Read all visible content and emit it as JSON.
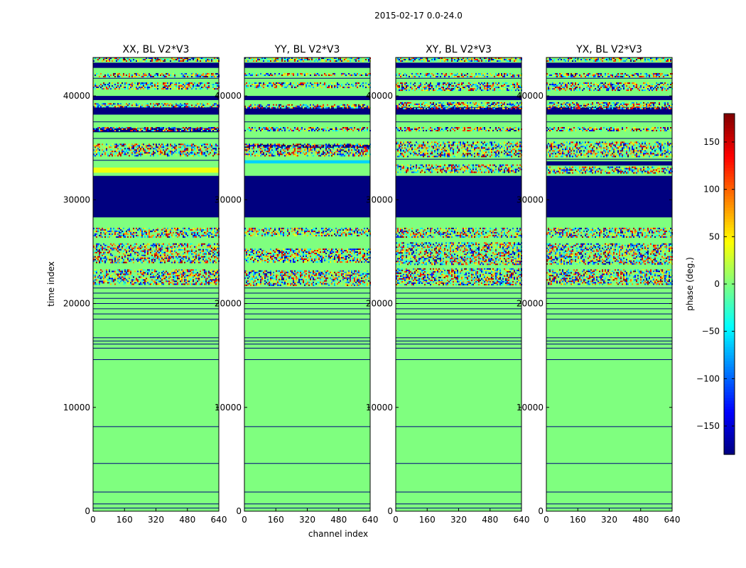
{
  "chart_data": {
    "type": "heatmap",
    "title": "2015-02-17 0.0-24.0",
    "xlabel": "channel index",
    "ylabel": "time index",
    "xlim": [
      0,
      640
    ],
    "ylim": [
      0,
      43700
    ],
    "xticks": [
      0,
      160,
      320,
      480,
      640
    ],
    "yticks": [
      0,
      10000,
      20000,
      30000,
      40000
    ],
    "colorbar": {
      "label": "phase (deg.)",
      "range": [
        -180,
        180
      ],
      "ticks": [
        -150,
        -100,
        -50,
        0,
        50,
        100,
        150
      ],
      "colormap": "jet",
      "colors": [
        "#00007f",
        "#0000ff",
        "#007fff",
        "#00ffff",
        "#7fff7f",
        "#ffff00",
        "#ff7f00",
        "#ff0000",
        "#7f0000"
      ]
    },
    "panels": [
      {
        "name": "XX, BL V2*V3",
        "bands": [
          {
            "from": 28300,
            "to": 32300,
            "phase": -180
          },
          {
            "from": 38200,
            "to": 38900,
            "phase": -180
          },
          {
            "from": 39600,
            "to": 40000,
            "phase": -180
          },
          {
            "from": 42700,
            "to": 43200,
            "phase": -180
          },
          {
            "from": 32600,
            "to": 33100,
            "phase": 40
          },
          {
            "from": 36500,
            "to": 36900,
            "phase": -180
          }
        ],
        "noise": [
          {
            "from": 21800,
            "to": 23300
          },
          {
            "from": 23900,
            "to": 25800
          },
          {
            "from": 26400,
            "to": 27300
          },
          {
            "from": 34300,
            "to": 35400
          },
          {
            "from": 36600,
            "to": 37000
          },
          {
            "from": 38900,
            "to": 39300
          },
          {
            "from": 40700,
            "to": 41300
          },
          {
            "from": 41900,
            "to": 42200
          },
          {
            "from": 43300,
            "to": 43700
          }
        ],
        "lines": [
          300,
          700,
          1850,
          4600,
          8150,
          14600,
          15700,
          16100,
          16400,
          16700,
          18500,
          19000,
          19500,
          20000,
          20500,
          21000,
          21500,
          28400,
          33800,
          35900,
          37500,
          41700
        ]
      },
      {
        "name": "YY, BL V2*V3",
        "bands": [
          {
            "from": 28300,
            "to": 32300,
            "phase": -180
          },
          {
            "from": 38200,
            "to": 38900,
            "phase": -180
          },
          {
            "from": 39600,
            "to": 40000,
            "phase": -180
          },
          {
            "from": 42700,
            "to": 43200,
            "phase": -180
          },
          {
            "from": 33500,
            "to": 33800,
            "phase": -60
          },
          {
            "from": 35000,
            "to": 35300,
            "phase": -180
          }
        ],
        "noise": [
          {
            "from": 21800,
            "to": 23200
          },
          {
            "from": 24000,
            "to": 25300
          },
          {
            "from": 26600,
            "to": 27300
          },
          {
            "from": 34300,
            "to": 35400
          },
          {
            "from": 36600,
            "to": 37000
          },
          {
            "from": 38900,
            "to": 39200
          },
          {
            "from": 40800,
            "to": 41300
          },
          {
            "from": 42000,
            "to": 42200
          },
          {
            "from": 43300,
            "to": 43700
          }
        ],
        "lines": [
          300,
          700,
          1850,
          4600,
          8150,
          14600,
          15700,
          16100,
          16400,
          16700,
          18500,
          19000,
          19500,
          20000,
          20500,
          21000,
          21500,
          28400,
          35900,
          37500,
          41700
        ]
      },
      {
        "name": "XY, BL V2*V3",
        "bands": [
          {
            "from": 28300,
            "to": 32300,
            "phase": -180
          },
          {
            "from": 38200,
            "to": 38900,
            "phase": -180
          },
          {
            "from": 39600,
            "to": 40000,
            "phase": -180
          },
          {
            "from": 42700,
            "to": 43200,
            "phase": -180
          }
        ],
        "noise": [
          {
            "from": 21800,
            "to": 23400
          },
          {
            "from": 23800,
            "to": 25900
          },
          {
            "from": 26400,
            "to": 27300
          },
          {
            "from": 32600,
            "to": 33400
          },
          {
            "from": 34200,
            "to": 35600
          },
          {
            "from": 36600,
            "to": 37000
          },
          {
            "from": 38800,
            "to": 39400
          },
          {
            "from": 40600,
            "to": 41300
          },
          {
            "from": 41900,
            "to": 42200
          },
          {
            "from": 43300,
            "to": 43700
          }
        ],
        "lines": [
          300,
          700,
          1850,
          4600,
          8150,
          14600,
          15700,
          16100,
          16400,
          16700,
          18500,
          19000,
          19500,
          20000,
          20500,
          21000,
          21500,
          28400,
          33900,
          35900,
          37500,
          41700
        ]
      },
      {
        "name": "YX, BL V2*V3",
        "bands": [
          {
            "from": 28300,
            "to": 32300,
            "phase": -180
          },
          {
            "from": 38200,
            "to": 38900,
            "phase": -180
          },
          {
            "from": 39600,
            "to": 40000,
            "phase": -180
          },
          {
            "from": 42700,
            "to": 43200,
            "phase": -180
          },
          {
            "from": 33300,
            "to": 33700,
            "phase": -180
          }
        ],
        "noise": [
          {
            "from": 21800,
            "to": 23300
          },
          {
            "from": 23800,
            "to": 25800
          },
          {
            "from": 26400,
            "to": 27300
          },
          {
            "from": 32600,
            "to": 33200
          },
          {
            "from": 34200,
            "to": 35600
          },
          {
            "from": 36600,
            "to": 37000
          },
          {
            "from": 38800,
            "to": 39400
          },
          {
            "from": 40600,
            "to": 41300
          },
          {
            "from": 41900,
            "to": 42200
          },
          {
            "from": 43300,
            "to": 43700
          }
        ],
        "lines": [
          300,
          700,
          1850,
          4600,
          8150,
          14600,
          15700,
          16100,
          16400,
          16700,
          18500,
          19000,
          19500,
          20000,
          20500,
          21000,
          21500,
          28400,
          33900,
          35900,
          37500,
          41700
        ]
      }
    ]
  }
}
